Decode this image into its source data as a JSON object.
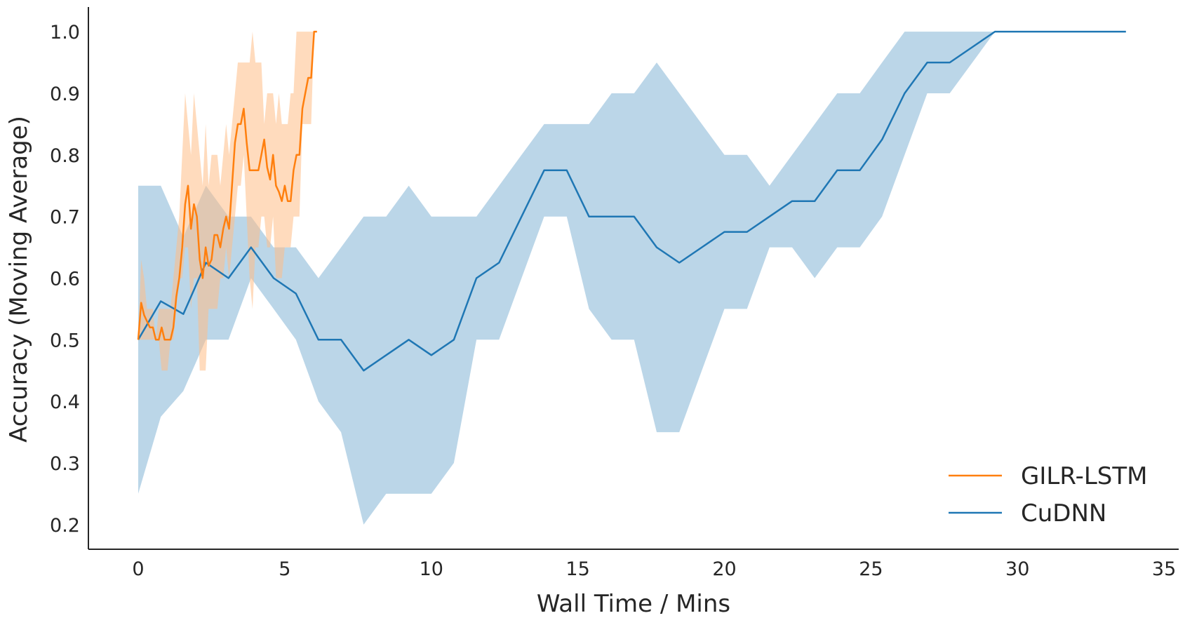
{
  "chart_data": {
    "type": "line",
    "title": "",
    "xlabel": "Wall Time / Mins",
    "ylabel": "Accuracy (Moving Average)",
    "xlim": [
      -1.7,
      35.5
    ],
    "ylim": [
      0.16,
      1.04
    ],
    "xticks": [
      "0",
      "5",
      "10",
      "15",
      "20",
      "25",
      "30",
      "35"
    ],
    "yticks": [
      "0.2",
      "0.3",
      "0.4",
      "0.5",
      "0.6",
      "0.7",
      "0.8",
      "0.9",
      "1.0"
    ],
    "grid": false,
    "legend_position": "lower-right",
    "series": [
      {
        "name": "GILR-LSTM",
        "color": "#ff7f0e",
        "band_color": "#ffbe86",
        "band_opacity": 0.55,
        "x": [
          0,
          0.1,
          0.2,
          0.3,
          0.4,
          0.5,
          0.6,
          0.7,
          0.8,
          0.9,
          1.0,
          1.1,
          1.2,
          1.3,
          1.4,
          1.5,
          1.6,
          1.7,
          1.8,
          1.9,
          2.0,
          2.1,
          2.2,
          2.3,
          2.4,
          2.5,
          2.6,
          2.7,
          2.8,
          2.9,
          3.0,
          3.1,
          3.2,
          3.3,
          3.4,
          3.5,
          3.6,
          3.7,
          3.8,
          3.9,
          4.0,
          4.1,
          4.2,
          4.3,
          4.4,
          4.5,
          4.6,
          4.7,
          4.8,
          4.9,
          5.0,
          5.1,
          5.2,
          5.3,
          5.4,
          5.5,
          5.6,
          5.7,
          5.8,
          5.9,
          6.0,
          6.1
        ],
        "y": [
          0.5,
          0.56,
          0.54,
          0.53,
          0.52,
          0.52,
          0.5,
          0.5,
          0.52,
          0.5,
          0.5,
          0.5,
          0.52,
          0.57,
          0.6,
          0.65,
          0.72,
          0.75,
          0.68,
          0.72,
          0.7,
          0.63,
          0.6,
          0.65,
          0.62,
          0.63,
          0.67,
          0.67,
          0.65,
          0.68,
          0.7,
          0.68,
          0.75,
          0.82,
          0.85,
          0.85,
          0.875,
          0.82,
          0.775,
          0.775,
          0.775,
          0.775,
          0.8,
          0.825,
          0.78,
          0.76,
          0.8,
          0.75,
          0.74,
          0.725,
          0.75,
          0.725,
          0.725,
          0.775,
          0.8,
          0.8,
          0.875,
          0.9,
          0.925,
          0.925,
          1.0,
          1.0
        ],
        "lower": [
          0.5,
          0.5,
          0.5,
          0.5,
          0.5,
          0.5,
          0.5,
          0.5,
          0.45,
          0.45,
          0.45,
          0.5,
          0.5,
          0.55,
          0.6,
          0.6,
          0.65,
          0.65,
          0.55,
          0.6,
          0.6,
          0.45,
          0.45,
          0.45,
          0.55,
          0.55,
          0.55,
          0.55,
          0.6,
          0.6,
          0.65,
          0.6,
          0.65,
          0.7,
          0.75,
          0.75,
          0.8,
          0.7,
          0.6,
          0.55,
          0.65,
          0.65,
          0.7,
          0.7,
          0.65,
          0.65,
          0.7,
          0.6,
          0.6,
          0.6,
          0.65,
          0.65,
          0.65,
          0.7,
          0.7,
          0.7,
          0.85,
          0.85,
          0.85,
          0.85,
          1.0,
          1.0
        ],
        "upper": [
          0.5,
          0.63,
          0.6,
          0.55,
          0.55,
          0.55,
          0.5,
          0.55,
          0.55,
          0.55,
          0.55,
          0.55,
          0.6,
          0.65,
          0.7,
          0.8,
          0.9,
          0.85,
          0.8,
          0.9,
          0.85,
          0.8,
          0.75,
          0.85,
          0.75,
          0.8,
          0.8,
          0.8,
          0.75,
          0.8,
          0.85,
          0.8,
          0.85,
          0.9,
          0.95,
          0.95,
          0.95,
          0.95,
          0.95,
          1.0,
          0.95,
          0.95,
          0.95,
          0.85,
          0.9,
          0.9,
          0.9,
          0.85,
          0.9,
          0.85,
          0.85,
          0.85,
          0.9,
          0.9,
          1.0,
          1.0,
          1.0,
          1.0,
          1.0,
          1.0,
          1.0,
          1.0
        ]
      },
      {
        "name": "CuDNN",
        "color": "#1f77b4",
        "band_color": "#1f77b4",
        "band_opacity": 0.3,
        "x": [
          0,
          0.77,
          1.54,
          2.31,
          3.08,
          3.85,
          4.62,
          5.38,
          6.15,
          6.92,
          7.69,
          8.46,
          9.23,
          10.0,
          10.77,
          11.54,
          12.31,
          13.08,
          13.85,
          14.62,
          15.38,
          16.15,
          16.92,
          17.69,
          18.46,
          19.23,
          20.0,
          20.77,
          21.54,
          22.31,
          23.08,
          23.85,
          24.62,
          25.38,
          26.15,
          26.92,
          27.69,
          28.46,
          29.23,
          30.0,
          30.77,
          31.54,
          32.31,
          33.08,
          33.7
        ],
        "y": [
          0.5,
          0.5625,
          0.5417,
          0.625,
          0.6,
          0.65,
          0.6,
          0.575,
          0.5,
          0.5,
          0.45,
          0.475,
          0.5,
          0.475,
          0.5,
          0.6,
          0.625,
          0.7,
          0.775,
          0.775,
          0.7,
          0.7,
          0.7,
          0.65,
          0.625,
          0.65,
          0.675,
          0.675,
          0.7,
          0.725,
          0.725,
          0.775,
          0.775,
          0.825,
          0.9,
          0.95,
          0.95,
          0.975,
          1.0,
          1.0,
          1.0,
          1.0,
          1.0,
          1.0,
          1.0
        ],
        "lower": [
          0.25,
          0.375,
          0.4167,
          0.5,
          0.5,
          0.6,
          0.55,
          0.5,
          0.4,
          0.35,
          0.2,
          0.25,
          0.25,
          0.25,
          0.3,
          0.5,
          0.5,
          0.6,
          0.7,
          0.7,
          0.55,
          0.5,
          0.5,
          0.35,
          0.35,
          0.45,
          0.55,
          0.55,
          0.65,
          0.65,
          0.6,
          0.65,
          0.65,
          0.7,
          0.8,
          0.9,
          0.9,
          0.95,
          1.0,
          1.0,
          1.0,
          1.0,
          1.0,
          1.0,
          1.0
        ],
        "upper": [
          0.75,
          0.75,
          0.6667,
          0.75,
          0.7,
          0.7,
          0.65,
          0.65,
          0.6,
          0.65,
          0.7,
          0.7,
          0.75,
          0.7,
          0.7,
          0.7,
          0.75,
          0.8,
          0.85,
          0.85,
          0.85,
          0.9,
          0.9,
          0.95,
          0.9,
          0.85,
          0.8,
          0.8,
          0.75,
          0.8,
          0.85,
          0.9,
          0.9,
          0.95,
          1.0,
          1.0,
          1.0,
          1.0,
          1.0,
          1.0,
          1.0,
          1.0,
          1.0,
          1.0,
          1.0
        ]
      }
    ]
  }
}
